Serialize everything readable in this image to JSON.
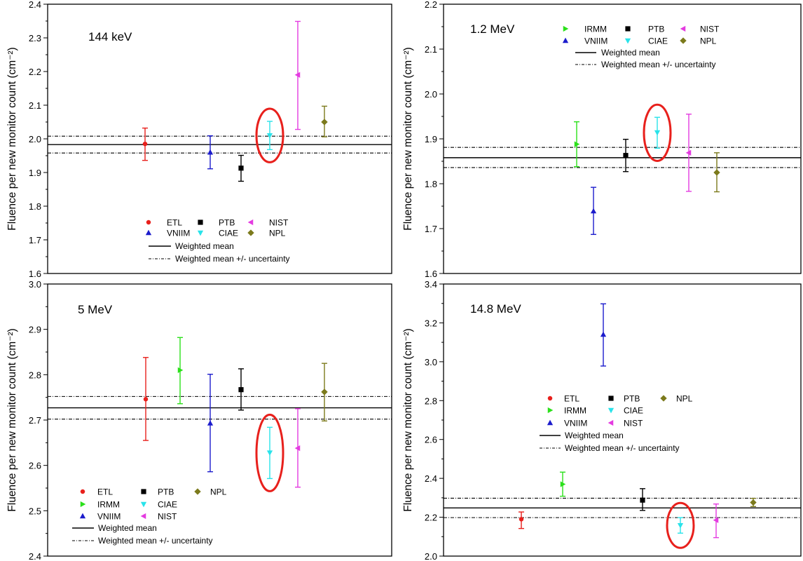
{
  "colors": {
    "ETL": "#e8201c",
    "IRMM": "#2be01a",
    "VNIIM": "#1c1ccc",
    "PTB": "#000000",
    "CIAE": "#29e3ea",
    "NIST": "#e43be0",
    "NPL": "#7c7a1c",
    "highlight": "#e8201c"
  },
  "chart_data": [
    {
      "type": "scatter",
      "panel": "top-left",
      "title": "144 keV",
      "ylabel": "Fluence per new monitor count (cm⁻²)",
      "xlabel": "",
      "ylim": [
        1.6,
        2.4
      ],
      "yticks": [
        1.6,
        1.7,
        1.8,
        1.9,
        2.0,
        2.1,
        2.2,
        2.3,
        2.4
      ],
      "tick_decimals": 1,
      "weighted_mean": 1.983,
      "weighted_mean_band": [
        1.958,
        2.008
      ],
      "points": [
        {
          "lab": "ETL",
          "marker": "circle",
          "x": 1,
          "y": 1.985,
          "lo": 1.936,
          "hi": 2.032
        },
        {
          "lab": "VNIIM",
          "marker": "up",
          "x": 2,
          "y": 1.96,
          "lo": 1.911,
          "hi": 2.009
        },
        {
          "lab": "PTB",
          "marker": "square",
          "x": 3,
          "y": 1.913,
          "lo": 1.874,
          "hi": 1.951
        },
        {
          "lab": "CIAE",
          "marker": "down",
          "x": 4,
          "y": 2.01,
          "lo": 1.968,
          "hi": 2.052
        },
        {
          "lab": "NIST",
          "marker": "left",
          "x": 5,
          "y": 2.19,
          "lo": 2.028,
          "hi": 2.349
        },
        {
          "lab": "NPL",
          "marker": "diamond",
          "x": 6,
          "y": 2.05,
          "lo": 2.006,
          "hi": 2.097
        }
      ],
      "highlight": "CIAE",
      "legend_grid": [
        [
          "ETL",
          "PTB",
          "NIST"
        ],
        [
          "VNIIM",
          "CIAE",
          "NPL"
        ]
      ],
      "legend_location": "bottom-center",
      "legend_lines": [
        "Weighted mean",
        "Weighted mean +/- uncertainty"
      ]
    },
    {
      "type": "scatter",
      "panel": "top-right",
      "title": "1.2 MeV",
      "ylabel": "Fluence per new monitor count (cm⁻²)",
      "xlabel": "",
      "ylim": [
        1.6,
        2.2
      ],
      "yticks": [
        1.6,
        1.7,
        1.8,
        1.9,
        2.0,
        2.1,
        2.2
      ],
      "tick_decimals": 1,
      "weighted_mean": 1.858,
      "weighted_mean_band": [
        1.836,
        1.881
      ],
      "points": [
        {
          "lab": "IRMM",
          "marker": "right",
          "x": 1,
          "y": 1.888,
          "lo": 1.838,
          "hi": 1.938
        },
        {
          "lab": "VNIIM",
          "marker": "up",
          "x": 2,
          "y": 1.739,
          "lo": 1.687,
          "hi": 1.792
        },
        {
          "lab": "PTB",
          "marker": "square",
          "x": 3,
          "y": 1.863,
          "lo": 1.827,
          "hi": 1.899
        },
        {
          "lab": "CIAE",
          "marker": "down",
          "x": 4,
          "y": 1.914,
          "lo": 1.879,
          "hi": 1.948
        },
        {
          "lab": "NIST",
          "marker": "left",
          "x": 5,
          "y": 1.869,
          "lo": 1.783,
          "hi": 1.955
        },
        {
          "lab": "NPL",
          "marker": "diamond",
          "x": 6,
          "y": 1.825,
          "lo": 1.782,
          "hi": 1.869
        }
      ],
      "highlight": "CIAE",
      "legend_grid": [
        [
          "IRMM",
          "PTB",
          "NIST"
        ],
        [
          "VNIIM",
          "CIAE",
          "NPL"
        ]
      ],
      "legend_location": "top-center",
      "legend_lines": [
        "Weighted mean",
        "Weighted mean +/- uncertainty"
      ]
    },
    {
      "type": "scatter",
      "panel": "bottom-left",
      "title": "5 MeV",
      "ylabel": "Fluence per new monitor count (cm⁻²)",
      "xlabel": "",
      "ylim": [
        2.4,
        3.0
      ],
      "yticks": [
        2.4,
        2.5,
        2.6,
        2.7,
        2.8,
        2.9,
        3.0
      ],
      "tick_decimals": 1,
      "weighted_mean": 2.727,
      "weighted_mean_band": [
        2.702,
        2.752
      ],
      "points": [
        {
          "lab": "ETL",
          "marker": "circle",
          "x": 1,
          "y": 2.746,
          "lo": 2.655,
          "hi": 2.838
        },
        {
          "lab": "IRMM",
          "marker": "right",
          "x": 2,
          "y": 2.81,
          "lo": 2.736,
          "hi": 2.882
        },
        {
          "lab": "VNIIM",
          "marker": "up",
          "x": 3,
          "y": 2.693,
          "lo": 2.586,
          "hi": 2.801
        },
        {
          "lab": "PTB",
          "marker": "square",
          "x": 4,
          "y": 2.767,
          "lo": 2.722,
          "hi": 2.813
        },
        {
          "lab": "CIAE",
          "marker": "down",
          "x": 5,
          "y": 2.628,
          "lo": 2.571,
          "hi": 2.684
        },
        {
          "lab": "NIST",
          "marker": "left",
          "x": 6,
          "y": 2.638,
          "lo": 2.552,
          "hi": 2.725
        },
        {
          "lab": "NPL",
          "marker": "diamond",
          "x": 7,
          "y": 2.762,
          "lo": 2.698,
          "hi": 2.825
        }
      ],
      "highlight": "CIAE",
      "legend_grid": [
        [
          "ETL",
          "PTB",
          "NPL"
        ],
        [
          "IRMM",
          "CIAE",
          ""
        ],
        [
          "VNIIM",
          "NIST",
          ""
        ]
      ],
      "legend_location": "bottom-left",
      "legend_lines": [
        "Weighted mean",
        "Weighted mean +/- uncertainty"
      ]
    },
    {
      "type": "scatter",
      "panel": "bottom-right",
      "title": "14.8 MeV",
      "ylabel": "Fluence per new monitor count (cm⁻²)",
      "xlabel": "",
      "ylim": [
        2.0,
        3.4
      ],
      "yticks": [
        2.0,
        2.2,
        2.4,
        2.6,
        2.8,
        3.0,
        3.2,
        3.4
      ],
      "tick_decimals": 1,
      "weighted_mean": 2.248,
      "weighted_mean_band": [
        2.198,
        2.298
      ],
      "points": [
        {
          "lab": "ETL",
          "marker": "circle",
          "x": 1,
          "y": 2.19,
          "lo": 2.142,
          "hi": 2.227
        },
        {
          "lab": "IRMM",
          "marker": "right",
          "x": 2,
          "y": 2.37,
          "lo": 2.308,
          "hi": 2.432
        },
        {
          "lab": "VNIIM",
          "marker": "up",
          "x": 3,
          "y": 3.14,
          "lo": 2.978,
          "hi": 3.298
        },
        {
          "lab": "PTB",
          "marker": "square",
          "x": 4,
          "y": 2.288,
          "lo": 2.235,
          "hi": 2.347
        },
        {
          "lab": "CIAE",
          "marker": "down",
          "x": 5,
          "y": 2.158,
          "lo": 2.118,
          "hi": 2.198
        },
        {
          "lab": "NIST",
          "marker": "left",
          "x": 6,
          "y": 2.185,
          "lo": 2.095,
          "hi": 2.268
        },
        {
          "lab": "NPL",
          "marker": "diamond",
          "x": 7,
          "y": 2.276,
          "lo": 2.255,
          "hi": 2.297
        }
      ],
      "highlight": "CIAE",
      "legend_grid": [
        [
          "ETL",
          "PTB",
          "NPL"
        ],
        [
          "IRMM",
          "CIAE",
          ""
        ],
        [
          "VNIIM",
          "NIST",
          ""
        ]
      ],
      "legend_location": "center",
      "legend_lines": [
        "Weighted mean",
        "Weighted mean +/- uncertainty"
      ]
    }
  ]
}
